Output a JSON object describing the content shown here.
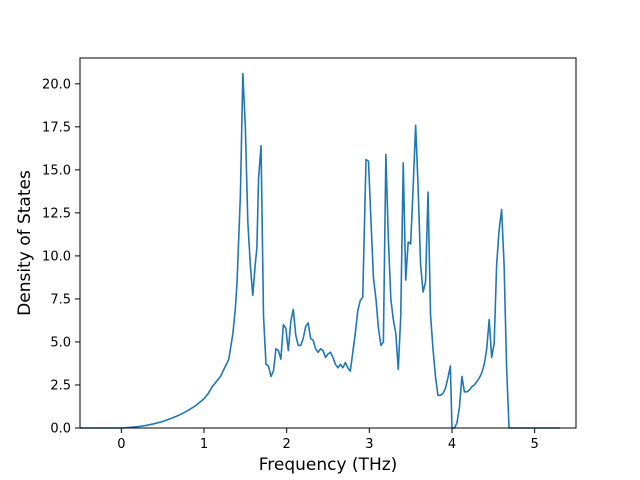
{
  "chart_data": {
    "type": "line",
    "title": "",
    "xlabel": "Frequency (THz)",
    "ylabel": "Density of States",
    "xlim": [
      -0.5,
      5.5
    ],
    "ylim": [
      0,
      21.5
    ],
    "xticks": [
      0,
      1,
      2,
      3,
      4,
      5
    ],
    "yticks": [
      0.0,
      2.5,
      5.0,
      7.5,
      10.0,
      12.5,
      15.0,
      17.5,
      20.0
    ],
    "xtick_labels": [
      "0",
      "1",
      "2",
      "3",
      "4",
      "5"
    ],
    "ytick_labels": [
      "0.0",
      "2.5",
      "5.0",
      "7.5",
      "10.0",
      "12.5",
      "15.0",
      "17.5",
      "20.0"
    ],
    "grid": false,
    "legend": "none",
    "colors": {
      "line": "#1f77b4"
    },
    "series": [
      {
        "x": [
          -0.5,
          0.0,
          0.1,
          0.2,
          0.3,
          0.4,
          0.5,
          0.6,
          0.7,
          0.8,
          0.9,
          1.0,
          1.05,
          1.1,
          1.15,
          1.2,
          1.25,
          1.3,
          1.35,
          1.38,
          1.4,
          1.42,
          1.44,
          1.47,
          1.5,
          1.53,
          1.56,
          1.59,
          1.62,
          1.64,
          1.66,
          1.69,
          1.72,
          1.75,
          1.78,
          1.81,
          1.84,
          1.87,
          1.9,
          1.93,
          1.96,
          1.99,
          2.02,
          2.05,
          2.08,
          2.11,
          2.14,
          2.17,
          2.2,
          2.23,
          2.26,
          2.29,
          2.32,
          2.35,
          2.38,
          2.41,
          2.44,
          2.47,
          2.5,
          2.53,
          2.56,
          2.59,
          2.62,
          2.65,
          2.68,
          2.71,
          2.74,
          2.77,
          2.8,
          2.83,
          2.86,
          2.89,
          2.92,
          2.96,
          2.99,
          3.02,
          3.05,
          3.08,
          3.11,
          3.14,
          3.17,
          3.2,
          3.23,
          3.26,
          3.29,
          3.32,
          3.35,
          3.38,
          3.41,
          3.44,
          3.47,
          3.5,
          3.53,
          3.56,
          3.59,
          3.62,
          3.65,
          3.68,
          3.71,
          3.74,
          3.77,
          3.8,
          3.83,
          3.86,
          3.89,
          3.92,
          3.95,
          3.98,
          4.0,
          4.03,
          4.06,
          4.09,
          4.12,
          4.15,
          4.18,
          4.21,
          4.24,
          4.27,
          4.3,
          4.33,
          4.36,
          4.39,
          4.42,
          4.45,
          4.48,
          4.51,
          4.54,
          4.57,
          4.6,
          4.63,
          4.66,
          4.69,
          4.72,
          4.75,
          4.78,
          4.81,
          4.84,
          4.87,
          5.0,
          5.3
        ],
        "y": [
          0.0,
          0.0,
          0.03,
          0.08,
          0.15,
          0.25,
          0.38,
          0.55,
          0.75,
          1.0,
          1.3,
          1.7,
          2.0,
          2.4,
          2.7,
          3.0,
          3.5,
          4.0,
          5.5,
          7.0,
          8.5,
          11.0,
          13.5,
          20.6,
          17.5,
          12.0,
          9.5,
          7.7,
          9.5,
          10.5,
          14.5,
          16.4,
          6.5,
          3.7,
          3.6,
          3.0,
          3.3,
          4.6,
          4.5,
          4.0,
          6.0,
          5.8,
          4.5,
          6.2,
          6.9,
          5.4,
          4.8,
          4.8,
          5.2,
          5.9,
          6.1,
          5.2,
          5.1,
          4.6,
          4.4,
          4.6,
          4.5,
          4.1,
          4.3,
          4.4,
          4.1,
          3.7,
          3.5,
          3.7,
          3.5,
          3.8,
          3.5,
          3.3,
          4.4,
          5.5,
          6.8,
          7.4,
          7.6,
          15.6,
          15.5,
          12.0,
          8.7,
          7.5,
          5.8,
          4.8,
          5.0,
          15.9,
          11.0,
          7.5,
          6.3,
          5.5,
          3.4,
          6.5,
          15.4,
          8.6,
          10.8,
          10.7,
          14.0,
          17.6,
          14.0,
          9.5,
          7.9,
          8.5,
          13.7,
          6.6,
          4.6,
          3.0,
          1.9,
          1.9,
          2.0,
          2.3,
          2.9,
          3.6,
          0.0,
          0.0,
          0.3,
          1.2,
          3.0,
          2.1,
          2.1,
          2.2,
          2.4,
          2.5,
          2.7,
          2.9,
          3.2,
          3.7,
          4.6,
          6.3,
          4.1,
          4.9,
          9.5,
          11.5,
          12.7,
          9.5,
          3.6,
          0.0,
          0.0,
          0.0,
          0.0,
          0.0,
          0.0,
          0.0,
          0.0,
          0.0
        ]
      }
    ]
  }
}
